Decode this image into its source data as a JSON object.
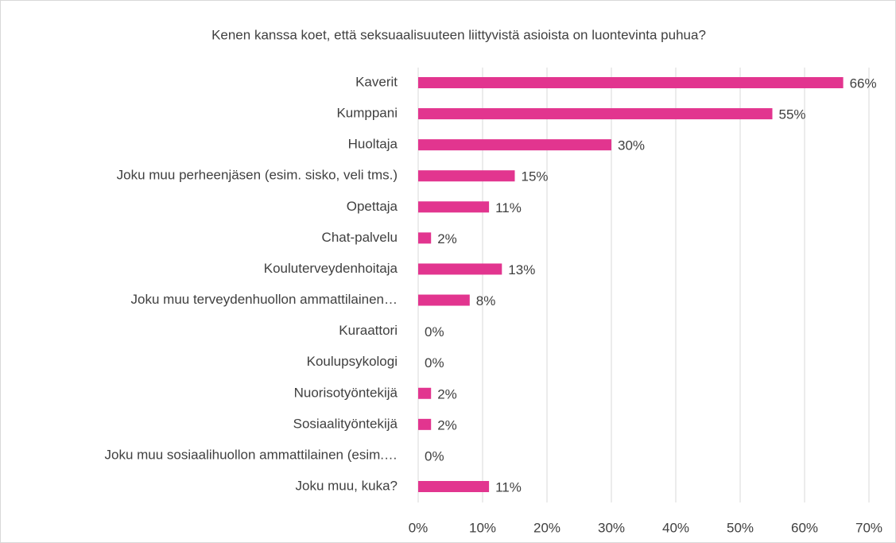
{
  "chart_data": {
    "type": "bar",
    "orientation": "horizontal",
    "title": "Kenen kanssa koet, että seksuaalisuuteen liittyvistä asioista on luontevinta puhua?",
    "categories": [
      "Kaverit",
      "Kumppani",
      "Huoltaja",
      "Joku muu perheenjäsen (esim. sisko, veli tms.)",
      "Opettaja",
      "Chat-palvelu",
      "Kouluterveydenhoitaja",
      "Joku muu terveydenhuollon ammattilainen…",
      "Kuraattori",
      "Koulupsykologi",
      "Nuorisotyöntekijä",
      "Sosiaalityöntekijä",
      "Joku muu sosiaalihuollon ammattilainen (esim.…",
      "Joku muu, kuka?"
    ],
    "values": [
      66,
      55,
      30,
      15,
      11,
      2,
      13,
      8,
      0,
      0,
      2,
      2,
      0,
      11
    ],
    "value_labels": [
      "66%",
      "55%",
      "30%",
      "15%",
      "11%",
      "2%",
      "13%",
      "8%",
      "0%",
      "0%",
      "2%",
      "2%",
      "0%",
      "11%"
    ],
    "color": "#e2358f",
    "xlim": [
      0,
      70
    ],
    "xticks": [
      {
        "value": 0,
        "label": "0%"
      },
      {
        "value": 10,
        "label": "10%"
      },
      {
        "value": 20,
        "label": "20%"
      },
      {
        "value": 30,
        "label": "30%"
      },
      {
        "value": 40,
        "label": "40%"
      },
      {
        "value": 50,
        "label": "50%"
      },
      {
        "value": 60,
        "label": "60%"
      },
      {
        "value": 70,
        "label": "70%"
      }
    ],
    "grid": true
  }
}
